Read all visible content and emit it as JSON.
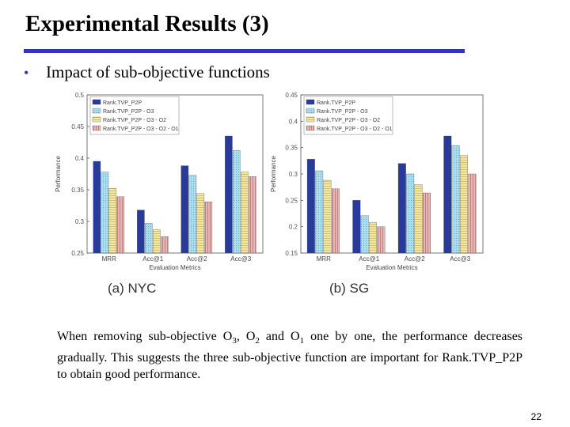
{
  "slide": {
    "title": "Experimental Results (3)",
    "bullet": "Impact of sub-objective functions",
    "description": {
      "p1": "When removing sub-objective O",
      "s1": "3",
      "p2": ", O",
      "s2": "2",
      "p3": " and O",
      "s3": "1",
      "p4": " one by one, the performance decreases gradually. This suggests the three sub-objective function are important for Rank.TVP_P2P to obtain good performance."
    },
    "page_number": "22",
    "accent_color": "#3333bb"
  },
  "chart_data": [
    {
      "type": "bar",
      "caption": "(a) NYC",
      "xlabel": "Evaluation Metrics",
      "ylabel": "Performance",
      "categories": [
        "MRR",
        "Acc@1",
        "Acc@2",
        "Acc@3"
      ],
      "ylim": [
        0.25,
        0.5
      ],
      "yticks": [
        0.25,
        0.3,
        0.35,
        0.4,
        0.45,
        0.5
      ],
      "ytick_labels": [
        "0.25",
        "0.3",
        "0.35",
        "0.4",
        "0.45",
        "0.5"
      ],
      "legend_position": "top-left",
      "series": [
        {
          "name": "Rank.TVP_P2P",
          "values": [
            0.395,
            0.318,
            0.388,
            0.435
          ],
          "color": "#283a9a",
          "pattern": "solid"
        },
        {
          "name": "Rank.TVP_P2P - O3",
          "values": [
            0.378,
            0.297,
            0.373,
            0.412
          ],
          "color": "#a9dff0",
          "pattern": "dots"
        },
        {
          "name": "Rank.TVP_P2P - O3 - O2",
          "values": [
            0.352,
            0.287,
            0.344,
            0.378
          ],
          "color": "#f2e7a3",
          "pattern": "hlines"
        },
        {
          "name": "Rank.TVP_P2P - O3 - O2 - O1",
          "values": [
            0.339,
            0.276,
            0.331,
            0.371
          ],
          "color": "#e8b4b4",
          "pattern": "vlines"
        }
      ]
    },
    {
      "type": "bar",
      "caption": "(b) SG",
      "xlabel": "Evaluation Metrics",
      "ylabel": "Performance",
      "categories": [
        "MRR",
        "Acc@1",
        "Acc@2",
        "Acc@3"
      ],
      "ylim": [
        0.15,
        0.45
      ],
      "yticks": [
        0.15,
        0.2,
        0.25,
        0.3,
        0.35,
        0.4,
        0.45
      ],
      "ytick_labels": [
        "0.15",
        "0.2",
        "0.25",
        "0.3",
        "0.35",
        "0.4",
        "0.45"
      ],
      "legend_position": "top-left",
      "series": [
        {
          "name": "Rank.TVP_P2P",
          "values": [
            0.328,
            0.25,
            0.32,
            0.372
          ],
          "color": "#283a9a",
          "pattern": "solid"
        },
        {
          "name": "Rank.TVP_P2P - O3",
          "values": [
            0.306,
            0.221,
            0.3,
            0.354
          ],
          "color": "#a9dff0",
          "pattern": "dots"
        },
        {
          "name": "Rank.TVP_P2P - O3 - O2",
          "values": [
            0.288,
            0.208,
            0.28,
            0.335
          ],
          "color": "#f2e7a3",
          "pattern": "hlines"
        },
        {
          "name": "Rank.TVP_P2P - O3 - O2 - O1",
          "values": [
            0.272,
            0.2,
            0.264,
            0.3
          ],
          "color": "#e8b4b4",
          "pattern": "vlines"
        }
      ]
    }
  ]
}
